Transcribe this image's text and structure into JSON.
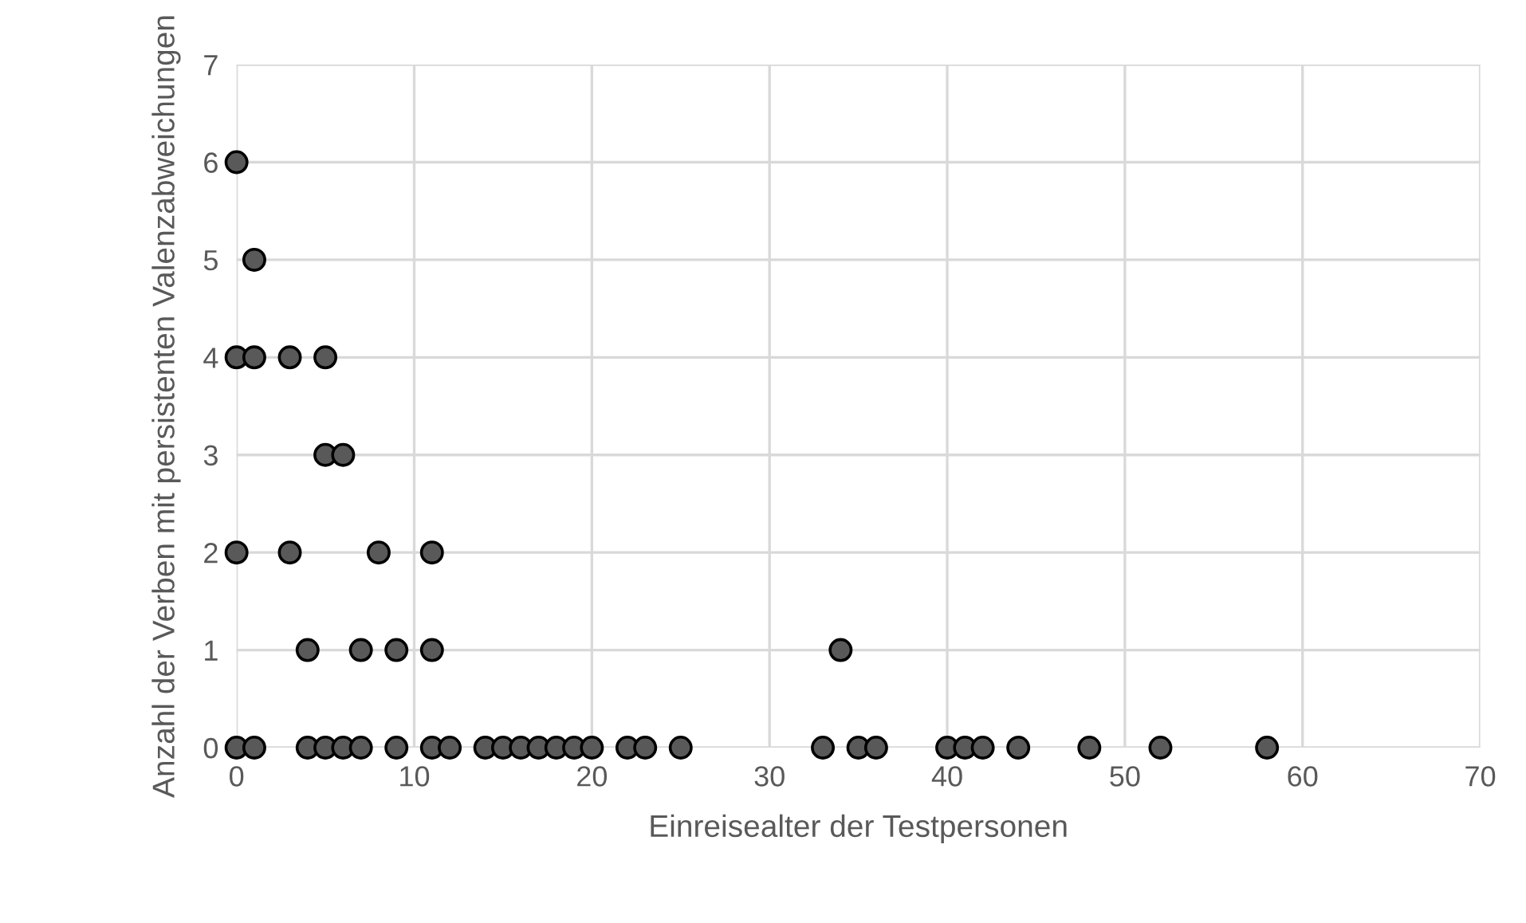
{
  "chart_data": {
    "type": "scatter",
    "xlabel": "Einreisealter der Testpersonen",
    "ylabel": "Anzahl der Verben mit persistenten Valenzabweichungen",
    "series": [
      {
        "color": "#595959",
        "x": [
          0,
          1,
          4,
          5,
          6,
          7,
          9,
          11,
          12,
          14,
          15,
          16,
          17,
          18,
          19,
          20,
          22,
          23,
          25,
          33,
          35,
          36,
          40,
          41,
          42,
          44,
          48,
          52,
          58,
          0,
          1,
          0,
          1,
          3,
          5,
          5,
          6,
          0,
          3,
          8,
          11,
          4,
          7,
          9,
          11,
          34
        ],
        "values": [
          0,
          0,
          0,
          0,
          0,
          0,
          0,
          0,
          0,
          0,
          0,
          0,
          0,
          0,
          0,
          0,
          0,
          0,
          0,
          0,
          0,
          0,
          0,
          0,
          0,
          0,
          0,
          0,
          0,
          6,
          5,
          4,
          4,
          4,
          4,
          3,
          3,
          2,
          2,
          2,
          2,
          1,
          1,
          1,
          1,
          1
        ]
      }
    ],
    "xlim": [
      0,
      70
    ],
    "xticks": [
      0,
      10,
      20,
      30,
      40,
      50,
      60,
      70
    ],
    "ylim": [
      0,
      7
    ],
    "yticks": [
      0,
      1,
      2,
      3,
      4,
      5,
      6,
      7
    ],
    "grid": true,
    "marker": "circle"
  }
}
